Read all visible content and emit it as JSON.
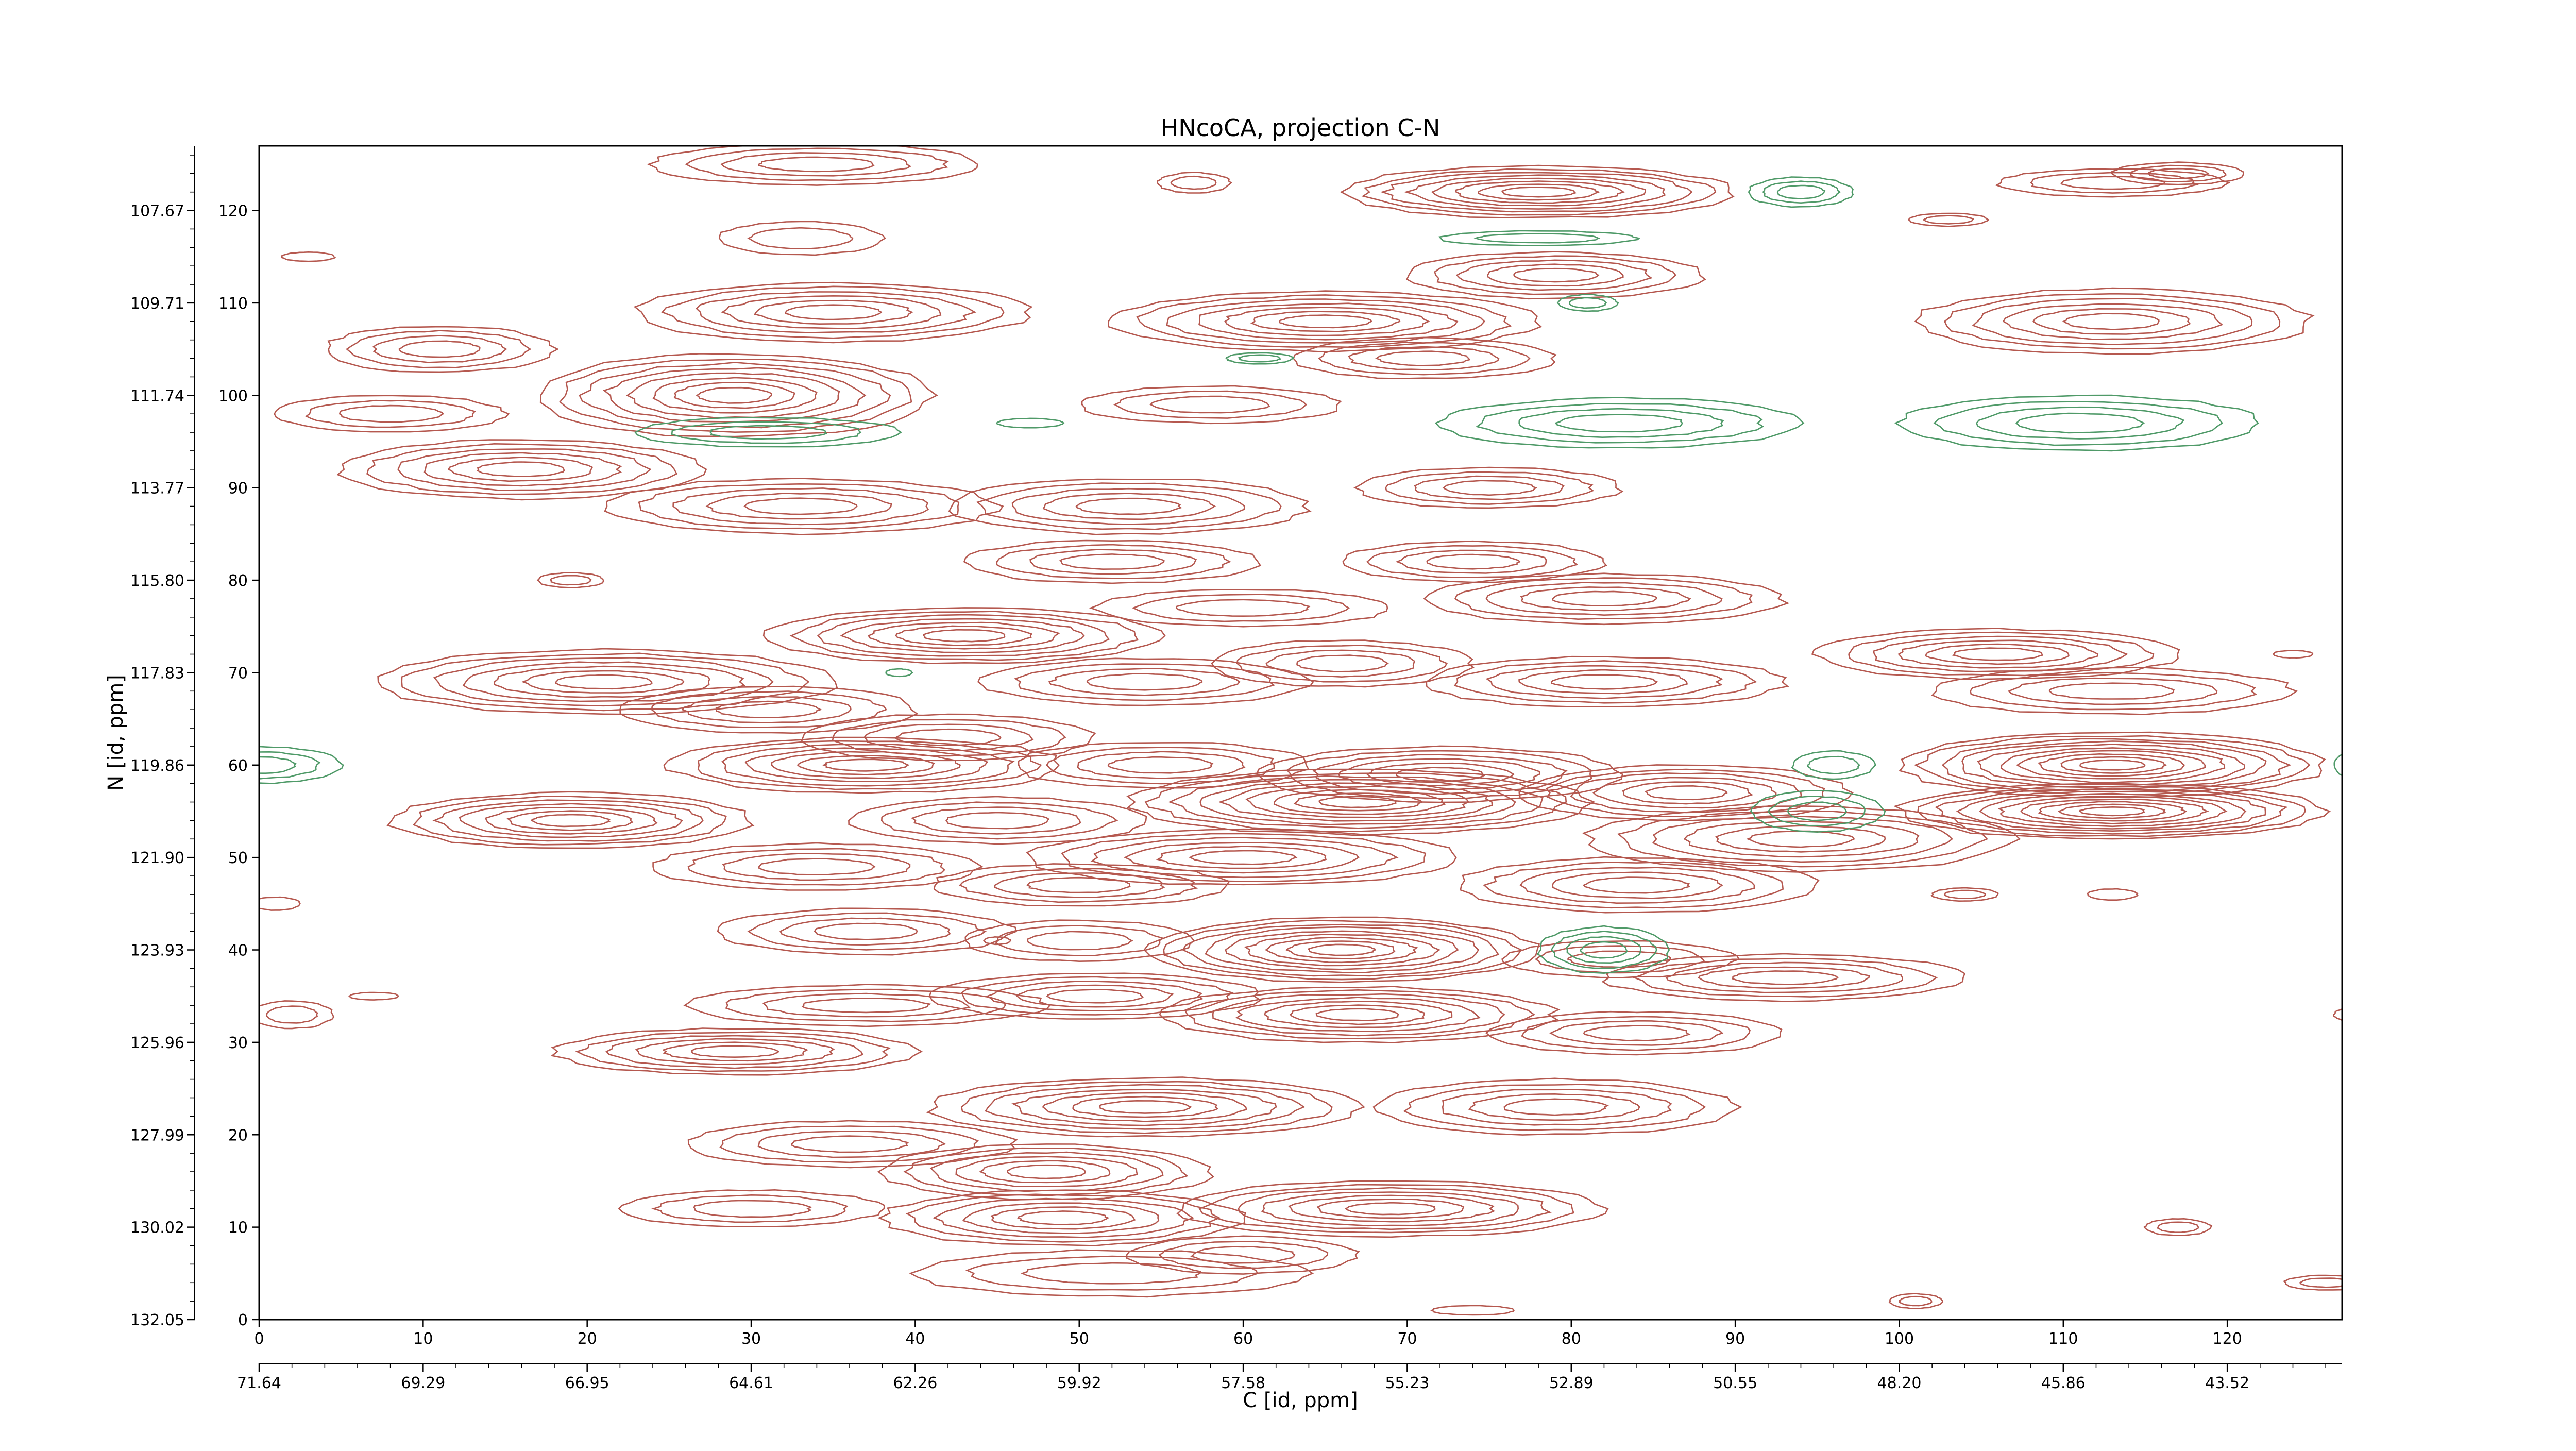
{
  "chart_data": {
    "type": "contour",
    "title": "HNcoCA, projection C-N",
    "xlabel": "C [id, ppm]",
    "ylabel": "N [id, ppm]",
    "x_index_ticks": [
      "0",
      "10",
      "20",
      "30",
      "40",
      "50",
      "60",
      "70",
      "80",
      "90",
      "100",
      "110",
      "120"
    ],
    "x_ppm_ticks": [
      "71.64",
      "69.29",
      "66.95",
      "64.61",
      "62.26",
      "59.92",
      "57.58",
      "55.23",
      "52.89",
      "50.55",
      "48.20",
      "45.86",
      "43.52"
    ],
    "y_index_ticks": [
      "0",
      "10",
      "20",
      "30",
      "40",
      "50",
      "60",
      "70",
      "80",
      "90",
      "100",
      "110",
      "120"
    ],
    "y_ppm_ticks": [
      "132.05",
      "130.02",
      "127.99",
      "125.96",
      "123.93",
      "121.90",
      "119.86",
      "117.83",
      "115.80",
      "113.77",
      "111.74",
      "109.71",
      "107.67"
    ],
    "xlim": [
      0,
      127
    ],
    "ylim": [
      0,
      127
    ],
    "colors": {
      "positive": "#b5584f",
      "negative": "#4f9a68"
    },
    "series": [
      {
        "sign": "positive",
        "peaks": [
          [
            78,
            122,
            12,
            2.8,
            8
          ],
          [
            34,
            125,
            10,
            2.2,
            4
          ],
          [
            33,
            117,
            5,
            1.8,
            2
          ],
          [
            35,
            109,
            12,
            3.2,
            6
          ],
          [
            11,
            105,
            7,
            2.5,
            4
          ],
          [
            29,
            100,
            12,
            4.5,
            8
          ],
          [
            8,
            98,
            7,
            2,
            3
          ],
          [
            65,
            108,
            13,
            3.2,
            7
          ],
          [
            79,
            113,
            9,
            2.5,
            5
          ],
          [
            71,
            104,
            8,
            2.2,
            4
          ],
          [
            58,
            99,
            8,
            2,
            3
          ],
          [
            113,
            108,
            12,
            3.5,
            6
          ],
          [
            113,
            123,
            7,
            1.5,
            3
          ],
          [
            16,
            92,
            11,
            3.2,
            6
          ],
          [
            33,
            88,
            12,
            3,
            5
          ],
          [
            53,
            88,
            11,
            3,
            5
          ],
          [
            75,
            90,
            8,
            2.2,
            4
          ],
          [
            52,
            82,
            9,
            2.3,
            4
          ],
          [
            74,
            82,
            8,
            2.2,
            4
          ],
          [
            60,
            77,
            9,
            2,
            3
          ],
          [
            82,
            78,
            11,
            2.7,
            5
          ],
          [
            43,
            74,
            12,
            3,
            7
          ],
          [
            66,
            71,
            8,
            2.5,
            4
          ],
          [
            21,
            69,
            14,
            3.5,
            7
          ],
          [
            31,
            66,
            9,
            2.5,
            4
          ],
          [
            54,
            69,
            10,
            2.5,
            4
          ],
          [
            82,
            69,
            11,
            2.7,
            5
          ],
          [
            106,
            72,
            11,
            2.7,
            6
          ],
          [
            113,
            68,
            11,
            2.5,
            4
          ],
          [
            42,
            63,
            9,
            2.5,
            4
          ],
          [
            37,
            60,
            12,
            3,
            7
          ],
          [
            55,
            60,
            9,
            2.5,
            4
          ],
          [
            72,
            59,
            11,
            3,
            6
          ],
          [
            67,
            56,
            14,
            3.5,
            9
          ],
          [
            87,
            57,
            10,
            3,
            6
          ],
          [
            113,
            60,
            13,
            3.5,
            10
          ],
          [
            113,
            55,
            13,
            3,
            10
          ],
          [
            19,
            54,
            11,
            3,
            7
          ],
          [
            45,
            54,
            9,
            2.5,
            4
          ],
          [
            60,
            50,
            13,
            3,
            6
          ],
          [
            94,
            52,
            13,
            3.5,
            6
          ],
          [
            34,
            49,
            10,
            2.5,
            4
          ],
          [
            50,
            47,
            9,
            2.3,
            4
          ],
          [
            84,
            47,
            11,
            3,
            5
          ],
          [
            37,
            42,
            9,
            2.5,
            4
          ],
          [
            50,
            41,
            7,
            2.2,
            3
          ],
          [
            66,
            40,
            12,
            3.5,
            9
          ],
          [
            83,
            39,
            7,
            2,
            3
          ],
          [
            93,
            37,
            11,
            2.5,
            5
          ],
          [
            37,
            34,
            11,
            2.2,
            4
          ],
          [
            51,
            35,
            10,
            2.5,
            5
          ],
          [
            67,
            33,
            12,
            3,
            7
          ],
          [
            84,
            31,
            9,
            2.3,
            4
          ],
          [
            29,
            29,
            11,
            2.5,
            6
          ],
          [
            54,
            23,
            13,
            3.2,
            7
          ],
          [
            79,
            23,
            11,
            3,
            5
          ],
          [
            36,
            19,
            10,
            2.5,
            4
          ],
          [
            48,
            16,
            10,
            3,
            6
          ],
          [
            69,
            12,
            13,
            3,
            7
          ],
          [
            49,
            11,
            11,
            3,
            6
          ],
          [
            30,
            12,
            8,
            2,
            3
          ],
          [
            60,
            7,
            7,
            2,
            3
          ],
          [
            52,
            5,
            12,
            2.5,
            3
          ],
          [
            2,
            33,
            2.5,
            1.5,
            2
          ],
          [
            117,
            10,
            2,
            0.9,
            2
          ],
          [
            126,
            4,
            2.5,
            0.8,
            2
          ],
          [
            101,
            2,
            1.6,
            0.8,
            2
          ],
          [
            74,
            1,
            2.5,
            0.5,
            1
          ],
          [
            7,
            35,
            1.5,
            0.4,
            1
          ],
          [
            1,
            45,
            1.5,
            0.7,
            1
          ],
          [
            104,
            46,
            2,
            0.7,
            2
          ],
          [
            113,
            46,
            1.5,
            0.6,
            1
          ],
          [
            19,
            80,
            2,
            0.8,
            2
          ],
          [
            124,
            72,
            1.2,
            0.4,
            1
          ],
          [
            3,
            115,
            1.6,
            0.5,
            1
          ],
          [
            57,
            123,
            2.2,
            1.1,
            2
          ],
          [
            103,
            119,
            2.4,
            0.7,
            2
          ],
          [
            117,
            124,
            4,
            1.2,
            3
          ],
          [
            128,
            33,
            1.5,
            0.8,
            1
          ],
          [
            45,
            41,
            0.8,
            0.4,
            1
          ]
        ]
      },
      {
        "sign": "negative",
        "peaks": [
          [
            94,
            122,
            3.2,
            1.6,
            3
          ],
          [
            78,
            117,
            6,
            0.8,
            2
          ],
          [
            81,
            110,
            1.8,
            0.9,
            2
          ],
          [
            83,
            97,
            11,
            2.7,
            4
          ],
          [
            111,
            97,
            11,
            3,
            4
          ],
          [
            31,
            96,
            8,
            1.6,
            3
          ],
          [
            47,
            97,
            2,
            0.5,
            1
          ],
          [
            61,
            104,
            2,
            0.6,
            2
          ],
          [
            0,
            60,
            5,
            2,
            3
          ],
          [
            128,
            60,
            1.5,
            1.5,
            2
          ],
          [
            96,
            60,
            2.5,
            1.5,
            2
          ],
          [
            95,
            55,
            4,
            2.2,
            3
          ],
          [
            82,
            40,
            4,
            2.5,
            4
          ],
          [
            39,
            70,
            0.8,
            0.4,
            1
          ]
        ]
      }
    ]
  }
}
